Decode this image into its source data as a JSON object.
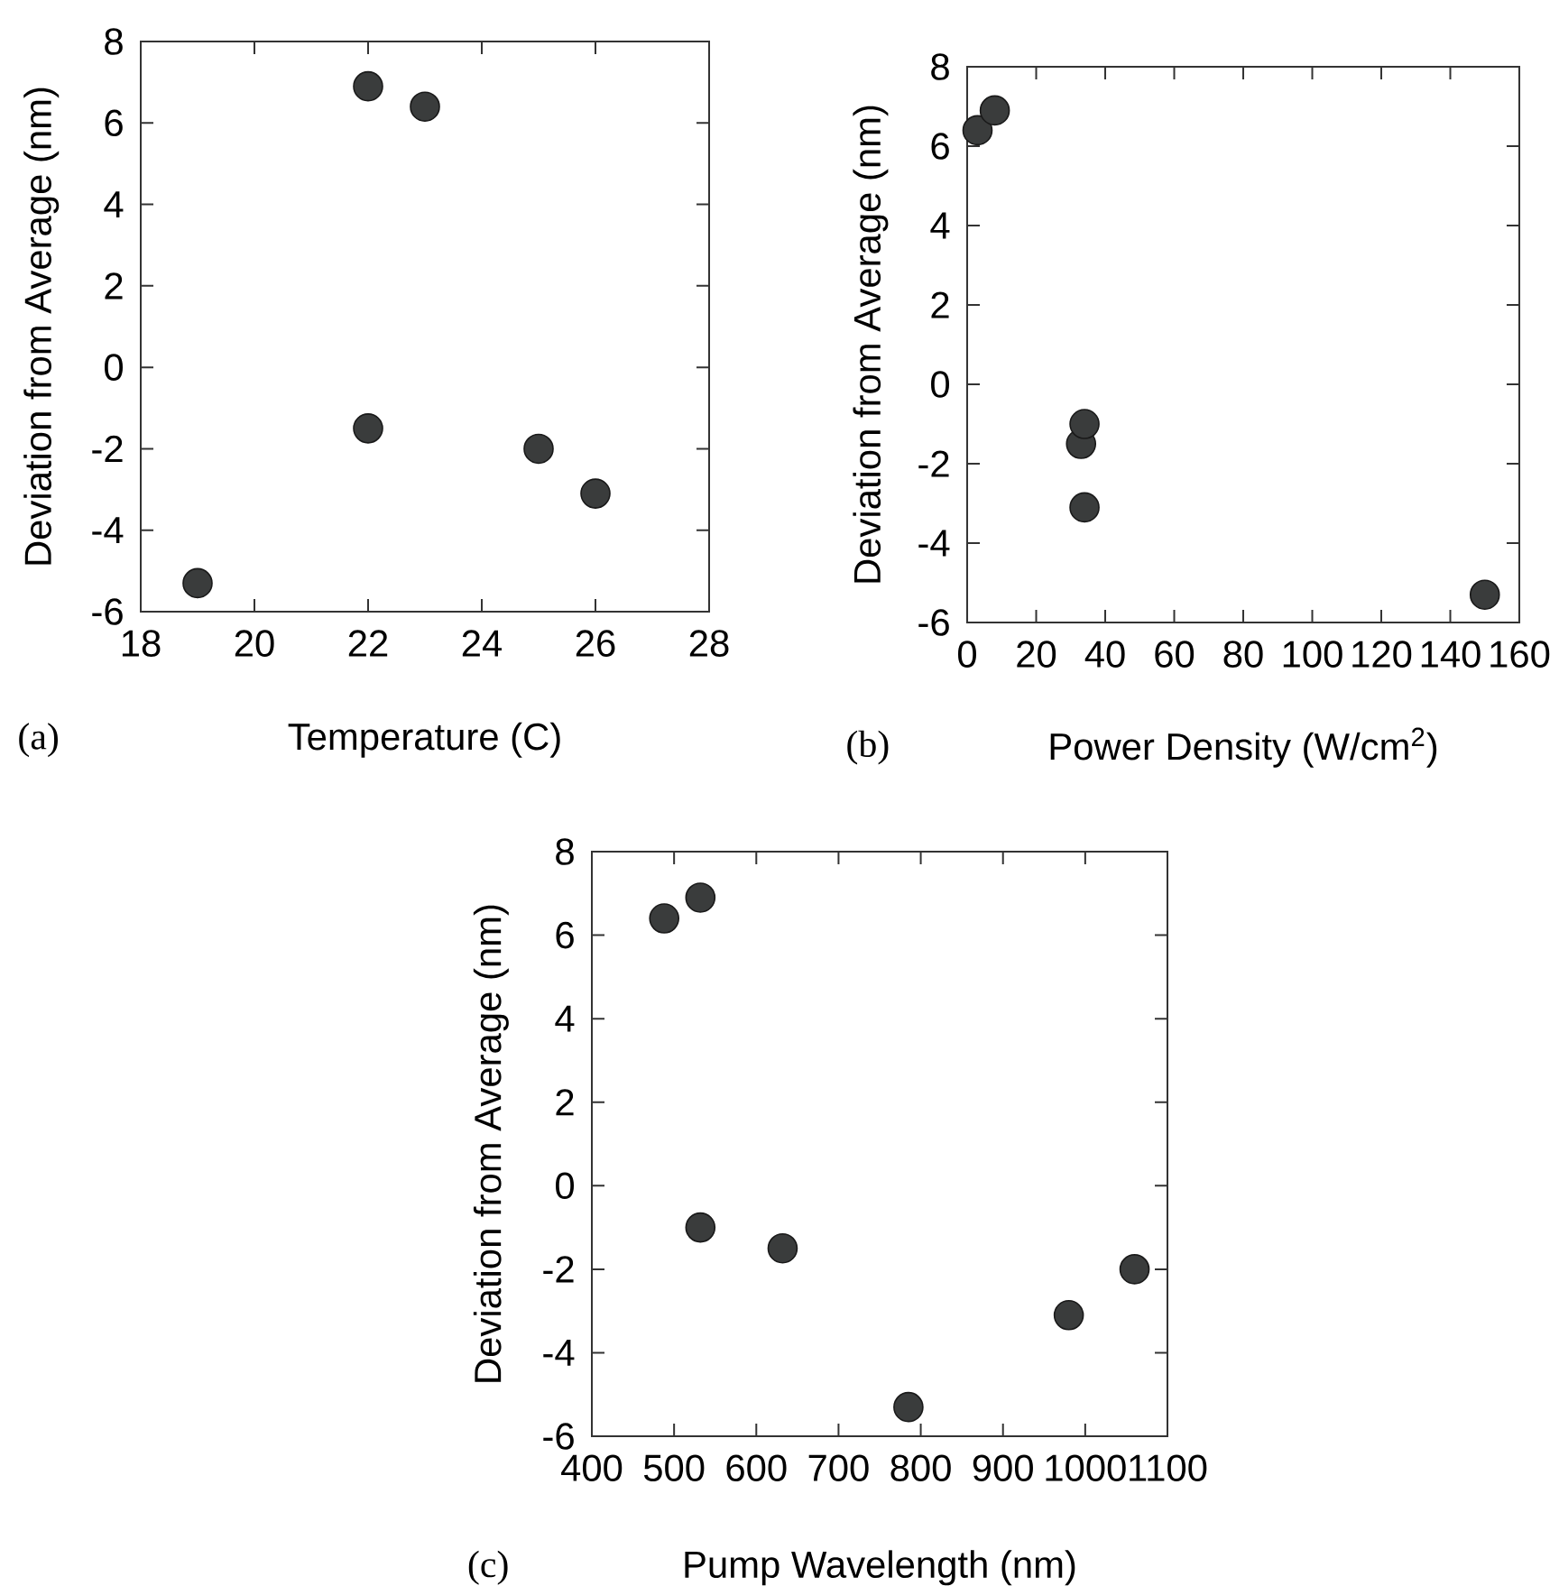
{
  "chart_data": [
    {
      "type": "scatter",
      "xlabel": "Temperature (C)",
      "ylabel": "Deviation from Average (nm)",
      "annotations": [
        "(a)"
      ],
      "marker": "circle",
      "color": "#3a3c3c",
      "x": [
        19,
        22,
        22,
        23,
        25,
        26
      ],
      "values": [
        -5.3,
        6.9,
        -1.5,
        6.4,
        -2.0,
        -3.1
      ],
      "xlim": [
        18,
        28
      ],
      "ylim": [
        -6,
        8
      ],
      "xticks": [
        18,
        20,
        22,
        24,
        26,
        28
      ],
      "yticks": [
        -6,
        -4,
        -2,
        0,
        2,
        4,
        6,
        8
      ]
    },
    {
      "type": "scatter",
      "xlabel": "Power Density (W/cm$^{2}$)",
      "ylabel": "Deviation from Average (nm)",
      "annotations": [
        "(b)"
      ],
      "marker": "circle",
      "color": "#3a3c3c",
      "x": [
        3,
        8,
        33,
        34,
        34,
        150
      ],
      "values": [
        6.4,
        6.9,
        -1.5,
        -1.0,
        -3.1,
        -5.3
      ],
      "xlim": [
        0,
        160
      ],
      "ylim": [
        -6,
        8
      ],
      "xticks": [
        0,
        20,
        40,
        60,
        80,
        100,
        120,
        140,
        160
      ],
      "yticks": [
        -6,
        -4,
        -2,
        0,
        2,
        4,
        6,
        8
      ]
    },
    {
      "type": "scatter",
      "xlabel": "Pump Wavelength (nm)",
      "ylabel": "Deviation from Average (nm)",
      "annotations": [
        "(c)"
      ],
      "marker": "circle",
      "color": "#3a3c3c",
      "x": [
        488,
        532,
        532,
        632,
        785,
        980,
        1060
      ],
      "values": [
        6.4,
        6.9,
        -1.0,
        -1.5,
        -5.3,
        -3.1,
        -2.0
      ],
      "xlim": [
        400,
        1100
      ],
      "ylim": [
        -6,
        8
      ],
      "xticks": [
        400,
        500,
        600,
        700,
        800,
        900,
        1000,
        1100
      ],
      "yticks": [
        -6,
        -4,
        -2,
        0,
        2,
        4,
        6,
        8
      ]
    }
  ]
}
